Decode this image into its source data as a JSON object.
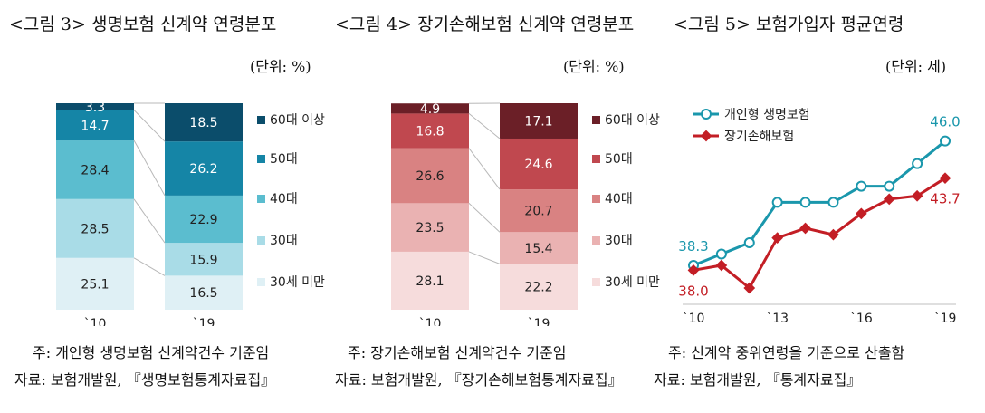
{
  "figures": [
    {
      "title": "<그림 3> 생명보험 신계약 연령분포",
      "unit": "(단위: %)",
      "note": "주: 개인형 생명보험 신계약건수 기준임",
      "source": "자료: 보험개발원, 『생명보험통계자료집』"
    },
    {
      "title": "<그림 4> 장기손해보험 신계약 연령분포",
      "unit": "(단위: %)",
      "note": "주: 장기손해보험 신계약건수 기준임",
      "source": "자료: 보험개발원, 『장기손해보험통계자료집』"
    },
    {
      "title": "<그림 5> 보험가입자 평균연령",
      "unit": "(단위: 세)",
      "note": "주: 신계약 중위연령을 기준으로 산출함",
      "source": "자료: 보험개발원, 『통계자료집』"
    }
  ],
  "chart_data": [
    {
      "type": "bar",
      "stacked": true,
      "categories": [
        "`10",
        "`19"
      ],
      "series": [
        {
          "name": "30세 미만",
          "values": [
            25.1,
            16.5
          ],
          "color": "#dff0f5"
        },
        {
          "name": "30대",
          "values": [
            28.5,
            15.9
          ],
          "color": "#a9dce7"
        },
        {
          "name": "40대",
          "values": [
            28.4,
            22.9
          ],
          "color": "#5bbdcf"
        },
        {
          "name": "50대",
          "values": [
            14.7,
            26.2
          ],
          "color": "#1585a6"
        },
        {
          "name": "60대 이상",
          "values": [
            3.3,
            18.5
          ],
          "color": "#0b4d6b"
        }
      ],
      "legend_order": [
        "60대 이상",
        "50대",
        "40대",
        "30대",
        "30세 미만"
      ],
      "legend_position": "right"
    },
    {
      "type": "bar",
      "stacked": true,
      "categories": [
        "`10",
        "`19"
      ],
      "series": [
        {
          "name": "30세 미만",
          "values": [
            28.1,
            22.2
          ],
          "color": "#f6dcdc"
        },
        {
          "name": "30대",
          "values": [
            23.5,
            15.4
          ],
          "color": "#eab2b2"
        },
        {
          "name": "40대",
          "values": [
            26.6,
            20.7
          ],
          "color": "#d98282"
        },
        {
          "name": "50대",
          "values": [
            16.8,
            24.6
          ],
          "color": "#c0484f"
        },
        {
          "name": "60대 이상",
          "values": [
            4.9,
            17.1
          ],
          "color": "#6b1f27"
        }
      ],
      "legend_order": [
        "60대 이상",
        "50대",
        "40대",
        "30대",
        "30세 미만"
      ],
      "legend_position": "right"
    },
    {
      "type": "line",
      "x": [
        2010,
        2011,
        2012,
        2013,
        2014,
        2015,
        2016,
        2017,
        2018,
        2019
      ],
      "x_tick_labels": [
        "`10",
        "`13",
        "`16",
        "`19"
      ],
      "x_tick_values": [
        2010,
        2013,
        2016,
        2019
      ],
      "ylim": [
        36,
        48
      ],
      "series": [
        {
          "name": "개인형 생명보험",
          "values": [
            38.3,
            39.0,
            39.7,
            42.2,
            42.2,
            42.2,
            43.2,
            43.2,
            44.6,
            46.0
          ],
          "color": "#1a97ac",
          "marker": "hollow-circle"
        },
        {
          "name": "장기손해보험",
          "values": [
            38.0,
            38.3,
            36.9,
            40.0,
            40.6,
            40.2,
            41.5,
            42.4,
            42.6,
            43.7
          ],
          "color": "#c31e25",
          "marker": "diamond"
        }
      ],
      "data_labels": [
        {
          "series": 0,
          "index": 0,
          "text": "38.3"
        },
        {
          "series": 0,
          "index": 9,
          "text": "46.0"
        },
        {
          "series": 1,
          "index": 0,
          "text": "38.0"
        },
        {
          "series": 1,
          "index": 9,
          "text": "43.7"
        }
      ],
      "legend_position": "top-left"
    }
  ]
}
